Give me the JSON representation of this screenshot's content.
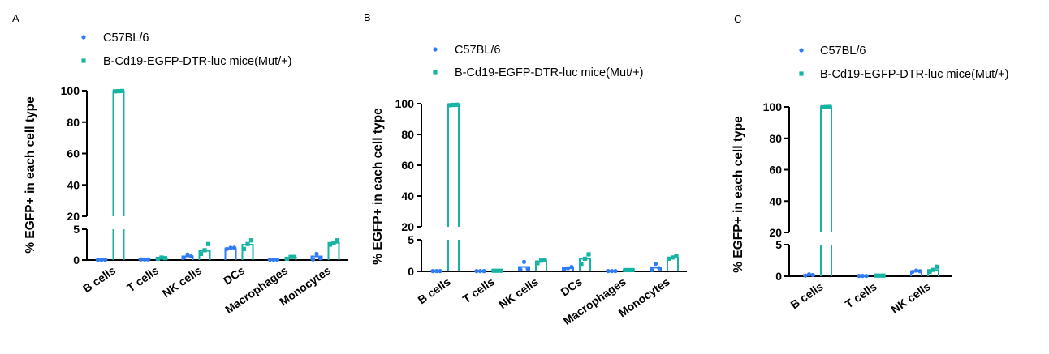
{
  "colors": {
    "c57": "#2f7cf6",
    "mut": "#17b3a3",
    "axis": "#000000"
  },
  "chart_data": [
    {
      "panel_label": "A",
      "type": "bar",
      "ylabel": "% EGFP+ in each cell type",
      "categories": [
        "B cells",
        "T cells",
        "NK cells",
        "DCs",
        "Macrophages",
        "Monocytes"
      ],
      "y_segments": {
        "lower": [
          0,
          5
        ],
        "upper": [
          20,
          100
        ]
      },
      "y_ticks_lower": [
        "0",
        "5"
      ],
      "y_ticks_upper": [
        "20",
        "40",
        "60",
        "80",
        "100"
      ],
      "legend": [
        "C57BL/6",
        "B-Cd19-EGFP-DTR-luc mice(Mut/+)"
      ],
      "series": [
        {
          "name": "C57BL/6",
          "values": [
            0.05,
            0.1,
            0.6,
            1.9,
            0.05,
            0.6
          ],
          "points": [
            [
              0,
              0.05,
              0.05
            ],
            [
              0.1,
              0.1,
              0.1
            ],
            [
              0.4,
              0.9,
              0.6
            ],
            [
              1.8,
              2.0,
              2.0
            ],
            [
              0.05,
              0.05,
              0.05
            ],
            [
              0.1,
              1.0,
              0.3
            ]
          ]
        },
        {
          "name": "B-Cd19-EGFP-DTR-luc mice(Mut/+)",
          "values": [
            99.7,
            0.3,
            1.5,
            2.5,
            0.4,
            2.8
          ],
          "points": [
            [
              99.6,
              99.7,
              99.8
            ],
            [
              0.2,
              0.4,
              0.3
            ],
            [
              1.0,
              1.6,
              2.6
            ],
            [
              1.8,
              2.6,
              3.2
            ],
            [
              0.2,
              0.5,
              0.5
            ],
            [
              2.5,
              2.8,
              3.2
            ]
          ]
        }
      ]
    },
    {
      "panel_label": "B",
      "type": "bar",
      "ylabel": "% EGFP+ in each cell type",
      "categories": [
        "B cells",
        "T cells",
        "NK cells",
        "DCs",
        "Macrophages",
        "Monocytes"
      ],
      "y_segments": {
        "lower": [
          0,
          5
        ],
        "upper": [
          20,
          100
        ]
      },
      "y_ticks_lower": [
        "0",
        "5"
      ],
      "y_ticks_upper": [
        "20",
        "40",
        "60",
        "80",
        "100"
      ],
      "legend": [
        "C57BL/6",
        "B-Cd19-EGFP-DTR-luc mice(Mut/+)"
      ],
      "series": [
        {
          "name": "C57BL/6",
          "values": [
            0.05,
            0.05,
            0.7,
            0.5,
            0.05,
            0.6
          ],
          "points": [
            [
              0.05,
              0.05,
              0.05
            ],
            [
              0.05,
              0.05,
              0.05
            ],
            [
              0.3,
              1.5,
              0.4
            ],
            [
              0.4,
              0.5,
              0.7
            ],
            [
              0.05,
              0.05,
              0.05
            ],
            [
              0.2,
              1.2,
              0.5
            ]
          ]
        },
        {
          "name": "B-Cd19-EGFP-DTR-luc mice(Mut/+)",
          "values": [
            99.2,
            0.1,
            1.6,
            2.0,
            0.2,
            2.2
          ],
          "points": [
            [
              99.0,
              99.2,
              99.3
            ],
            [
              0.1,
              0.1,
              0.1
            ],
            [
              1.3,
              1.7,
              1.8
            ],
            [
              1.2,
              2.0,
              2.7
            ],
            [
              0.2,
              0.2,
              0.2
            ],
            [
              2.0,
              2.2,
              2.4
            ]
          ]
        }
      ]
    },
    {
      "panel_label": "C",
      "type": "bar",
      "ylabel": "% EGFP+ in each cell type",
      "categories": [
        "B cells",
        "T cells",
        "NK cells"
      ],
      "y_segments": {
        "lower": [
          0,
          5
        ],
        "upper": [
          20,
          100
        ]
      },
      "y_ticks_lower": [
        "0",
        "5"
      ],
      "y_ticks_upper": [
        "20",
        "40",
        "60",
        "80",
        "100"
      ],
      "legend": [
        "C57BL/6",
        "B-Cd19-EGFP-DTR-luc mice(Mut/+)"
      ],
      "series": [
        {
          "name": "C57BL/6",
          "values": [
            0.2,
            0.05,
            0.8
          ],
          "points": [
            [
              0.1,
              0.3,
              0.2
            ],
            [
              0.05,
              0.05,
              0.05
            ],
            [
              0.7,
              0.9,
              0.8
            ]
          ]
        },
        {
          "name": "B-Cd19-EGFP-DTR-luc mice(Mut/+)",
          "values": [
            99.9,
            0.1,
            1.0
          ],
          "points": [
            [
              99.8,
              99.9,
              100.0
            ],
            [
              0.1,
              0.1,
              0.1
            ],
            [
              0.7,
              1.0,
              1.5
            ]
          ]
        }
      ]
    }
  ]
}
